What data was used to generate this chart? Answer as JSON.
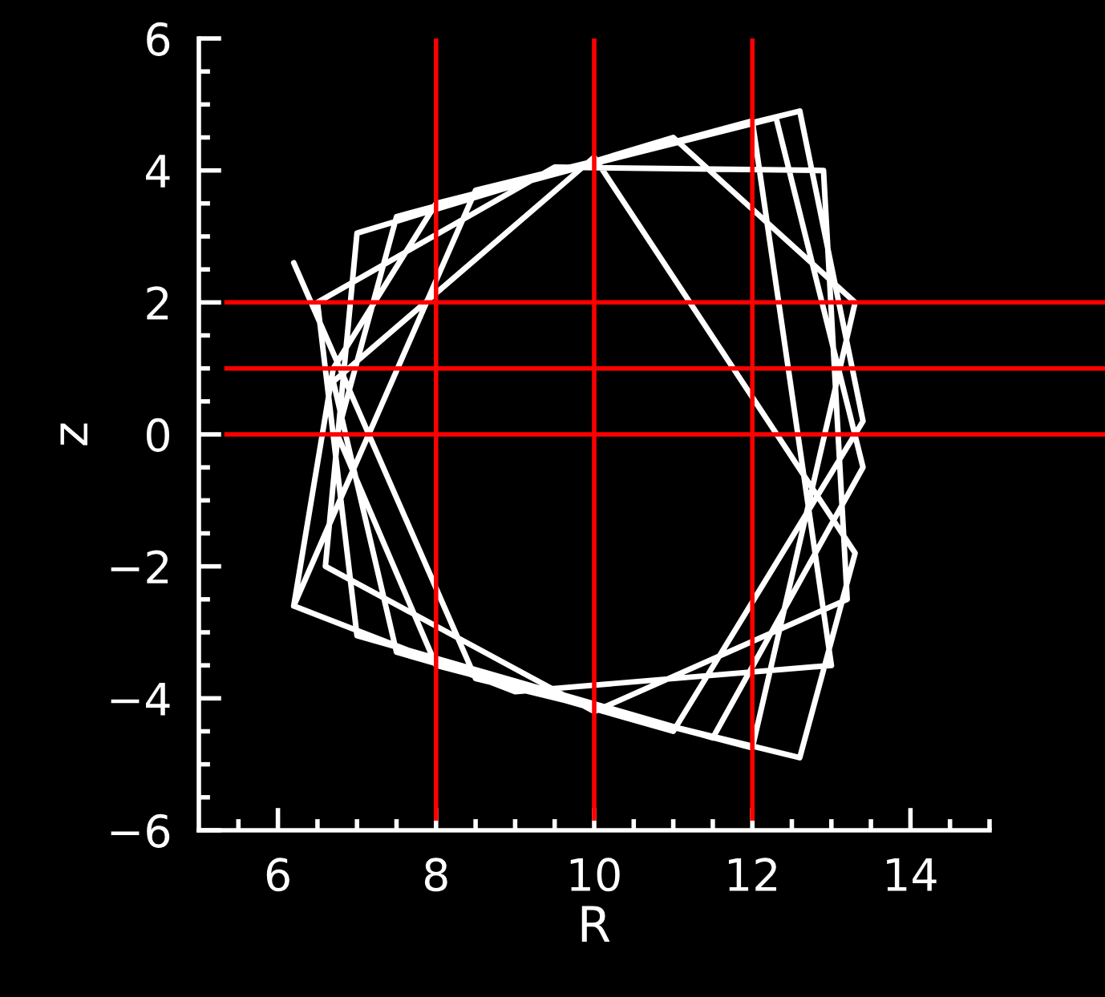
{
  "chart_data": {
    "type": "line",
    "xlabel": "R",
    "ylabel": "z",
    "xlim": [
      5,
      15
    ],
    "ylim": [
      -6,
      6
    ],
    "xticks": [
      {
        "value": 5.5,
        "label": null
      },
      6,
      {
        "value": 6.5,
        "label": null
      },
      {
        "value": 7,
        "label": null
      },
      {
        "value": 7.5,
        "label": null
      },
      8,
      {
        "value": 8.5,
        "label": null
      },
      {
        "value": 9,
        "label": null
      },
      {
        "value": 9.5,
        "label": null
      },
      10,
      {
        "value": 10.5,
        "label": null
      },
      {
        "value": 11,
        "label": null
      },
      {
        "value": 11.5,
        "label": null
      },
      12,
      {
        "value": 12.5,
        "label": null
      },
      {
        "value": 13,
        "label": null
      },
      {
        "value": 13.5,
        "label": null
      },
      14,
      {
        "value": 14.5,
        "label": null
      },
      {
        "value": 15,
        "label": null
      }
    ],
    "yticks": [
      {
        "value": -6,
        "label": "−6"
      },
      {
        "value": -5.5,
        "label": null
      },
      {
        "value": -5,
        "label": null
      },
      {
        "value": -4.5,
        "label": null
      },
      {
        "value": -4,
        "label": "−4"
      },
      {
        "value": -3.5,
        "label": null
      },
      {
        "value": -3,
        "label": null
      },
      {
        "value": -2.5,
        "label": null
      },
      {
        "value": -2,
        "label": "−2"
      },
      {
        "value": -1.5,
        "label": null
      },
      {
        "value": -1,
        "label": null
      },
      {
        "value": -0.5,
        "label": null
      },
      0,
      {
        "value": 0.5,
        "label": null
      },
      {
        "value": 1,
        "label": null
      },
      {
        "value": 1.5,
        "label": null
      },
      2,
      {
        "value": 2.5,
        "label": null
      },
      {
        "value": 3,
        "label": null
      },
      {
        "value": 3.5,
        "label": null
      },
      4,
      {
        "value": 4.5,
        "label": null
      },
      {
        "value": 5,
        "label": null
      },
      {
        "value": 5.5,
        "label": null
      },
      6
    ],
    "series": [
      {
        "color": "#ffffff",
        "x": [
          6.2,
          8.5,
          12.6,
          13.3,
          10,
          6.7,
          7.5,
          11,
          13.4,
          12.6,
          8.5,
          6.6,
          6.2,
          9,
          13.0,
          12.0,
          7.5,
          6.75,
          8,
          12,
          13.3,
          11,
          7,
          6.6,
          10,
          13.2,
          12.9,
          9.5,
          6.5,
          7,
          11.5,
          13.4,
          12.3,
          8,
          6.7,
          6.2
        ],
        "values": [
          2.6,
          -3.7,
          -4.9,
          -1.8,
          4.2,
          0.8,
          -3.3,
          -4.5,
          0.2,
          4.9,
          3.7,
          -1.5,
          -2.6,
          -3.9,
          -3.5,
          4.75,
          3.3,
          0,
          -3.5,
          -4.75,
          2,
          4.5,
          3.05,
          -2,
          -4.2,
          -2.5,
          4,
          4.05,
          2,
          -3.05,
          -4.6,
          -0.5,
          4.8,
          3.5,
          1,
          -2.6
        ]
      }
    ],
    "ref_lines": [
      {
        "axis": "x",
        "value": 8,
        "color": "#ff0000"
      },
      {
        "axis": "x",
        "value": 10,
        "color": "#ff0000"
      },
      {
        "axis": "x",
        "value": 12,
        "color": "#ff0000"
      },
      {
        "axis": "y",
        "value": 0,
        "color": "#ff0000"
      },
      {
        "axis": "y",
        "value": 1,
        "color": "#ff0000"
      },
      {
        "axis": "y",
        "value": 2,
        "color": "#ff0000"
      }
    ]
  }
}
